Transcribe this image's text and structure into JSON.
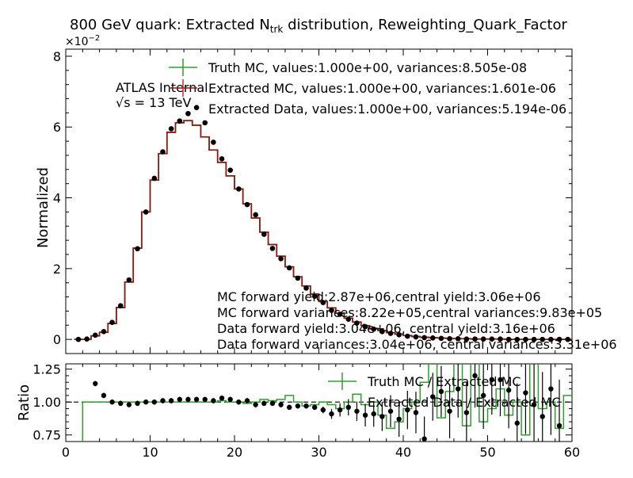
{
  "title": "800 GeV quark: Extracted N",
  "title_sub": "trk",
  "title_rest": " distribution, Reweighting_Quark_Factor",
  "exponent_label": "×10",
  "exponent_power": "−2",
  "atlas_label": "ATLAS Internal",
  "energy_label": "√s = 13 TeV",
  "legend_top": [
    "Truth MC, values:1.000e+00, variances:8.505e-08",
    "Extracted MC, values:1.000e+00, variances:1.601e-06",
    "Extracted Data, values:1.000e+00, variances:5.194e-06"
  ],
  "yield_notes": [
    "MC forward yield:2.87e+06,central yield:3.06e+06",
    "MC forward variances:8.22e+05,central variances:9.83e+05",
    "Data forward yield:3.04e+06, central yield:3.16e+06",
    "Data forward variances:3.04e+06, central variances:3.31e+06"
  ],
  "legend_ratio": [
    "Truth MC / Extracted MC",
    "Extracted Data / Extracted MC"
  ],
  "colors": {
    "truth": "#2ca02c",
    "extracted_mc": "#d62728",
    "data": "#000000"
  },
  "chart_data": [
    {
      "type": "line",
      "panel": "main",
      "ylabel": "Normalized",
      "xlim": [
        0,
        60
      ],
      "ylim": [
        -0.004,
        0.082
      ],
      "yticks": [
        0,
        2,
        4,
        6,
        8
      ],
      "bin_edges": [
        1,
        2,
        3,
        4,
        5,
        6,
        7,
        8,
        9,
        10,
        11,
        12,
        13,
        14,
        15,
        16,
        17,
        18,
        19,
        20,
        21,
        22,
        23,
        24,
        25,
        26,
        27,
        28,
        29,
        30,
        31,
        32,
        33,
        34,
        35,
        36,
        37,
        38,
        39,
        40,
        41,
        42,
        43,
        44,
        45,
        46,
        47,
        48,
        49,
        50,
        51,
        52,
        53,
        54,
        55,
        56,
        57,
        58,
        59,
        60
      ],
      "series": [
        {
          "name": "Truth MC",
          "style": "step",
          "values": [
            0.0,
            0.0,
            0.001,
            0.002,
            0.0045,
            0.009,
            0.0162,
            0.0258,
            0.036,
            0.045,
            0.0525,
            0.0585,
            0.0612,
            0.0618,
            0.0605,
            0.0572,
            0.0535,
            0.05,
            0.0462,
            0.0425,
            0.0383,
            0.0343,
            0.0303,
            0.0268,
            0.0235,
            0.0205,
            0.0177,
            0.0151,
            0.0128,
            0.0107,
            0.0089,
            0.0074,
            0.006,
            0.0049,
            0.0039,
            0.0031,
            0.0025,
            0.0019,
            0.0015,
            0.0011,
            0.0008,
            0.0006,
            0.0005,
            0.0004,
            0.0003,
            0.0002,
            0.0002,
            0.0001,
            0.0001,
            0.0001,
            0.0001,
            0.0,
            0.0,
            0.0,
            0.0,
            0.0,
            0.0,
            0.0,
            0.0
          ]
        },
        {
          "name": "Extracted MC",
          "style": "step",
          "values": [
            0.0,
            0.0,
            0.001,
            0.002,
            0.0045,
            0.009,
            0.0162,
            0.0258,
            0.036,
            0.045,
            0.0525,
            0.0585,
            0.0612,
            0.0618,
            0.0605,
            0.0572,
            0.0535,
            0.05,
            0.0462,
            0.0425,
            0.0383,
            0.0343,
            0.0303,
            0.0268,
            0.0235,
            0.0205,
            0.0177,
            0.0151,
            0.0128,
            0.0107,
            0.0089,
            0.0074,
            0.006,
            0.0049,
            0.0039,
            0.0031,
            0.0025,
            0.0019,
            0.0015,
            0.0011,
            0.0008,
            0.0006,
            0.0005,
            0.0004,
            0.0003,
            0.0002,
            0.0002,
            0.0001,
            0.0001,
            0.0001,
            0.0001,
            0.0,
            0.0,
            0.0,
            0.0,
            0.0,
            0.0,
            0.0,
            0.0
          ]
        },
        {
          "name": "Extracted Data",
          "style": "points",
          "x": [
            1.5,
            2.5,
            3.5,
            4.5,
            5.5,
            6.5,
            7.5,
            8.5,
            9.5,
            10.5,
            11.5,
            12.5,
            13.5,
            14.5,
            15.5,
            16.5,
            17.5,
            18.5,
            19.5,
            20.5,
            21.5,
            22.5,
            23.5,
            24.5,
            25.5,
            26.5,
            27.5,
            28.5,
            29.5,
            30.5,
            31.5,
            32.5,
            33.5,
            34.5,
            35.5,
            36.5,
            37.5,
            38.5,
            39.5,
            40.5,
            41.5,
            42.5,
            43.5,
            44.5,
            45.5,
            46.5,
            47.5,
            48.5,
            49.5,
            50.5,
            51.5,
            52.5,
            53.5,
            54.5,
            55.5,
            56.5,
            57.5,
            58.5,
            59.5
          ],
          "values": [
            0.0,
            0.0001,
            0.0012,
            0.0022,
            0.0048,
            0.0095,
            0.0168,
            0.0256,
            0.036,
            0.0455,
            0.053,
            0.0595,
            0.0617,
            0.0638,
            0.0655,
            0.0612,
            0.0557,
            0.051,
            0.0478,
            0.0425,
            0.0381,
            0.0352,
            0.0297,
            0.0257,
            0.0228,
            0.0202,
            0.0173,
            0.0145,
            0.0122,
            0.0104,
            0.0082,
            0.0071,
            0.0057,
            0.0046,
            0.0036,
            0.0029,
            0.0022,
            0.0017,
            0.0013,
            0.0009,
            0.0007,
            0.0005,
            0.0004,
            0.0003,
            0.0002,
            0.0002,
            0.0001,
            0.0001,
            0.0001,
            0.0001,
            0.0001,
            0.0,
            0.0,
            0.0,
            0.0,
            0.0,
            0.0,
            0.0,
            0.0
          ]
        }
      ]
    },
    {
      "type": "line",
      "panel": "ratio",
      "ylabel": "Ratio",
      "xlabel": "",
      "xlim": [
        0,
        60
      ],
      "ylim": [
        0.7,
        1.29
      ],
      "yticks": [
        0.75,
        1.0,
        1.25
      ],
      "yticklabels": [
        "0.75",
        "1.00",
        "1.25"
      ],
      "xticks": [
        0,
        10,
        20,
        30,
        40,
        50,
        60
      ],
      "reference_line": 1.0,
      "series": [
        {
          "name": "Truth MC / Extracted MC",
          "style": "step",
          "bin_edges": [
            1,
            2,
            3,
            4,
            5,
            6,
            7,
            8,
            9,
            10,
            11,
            12,
            13,
            14,
            15,
            16,
            17,
            18,
            19,
            20,
            21,
            22,
            23,
            24,
            25,
            26,
            27,
            28,
            29,
            30,
            31,
            32,
            33,
            34,
            35,
            36,
            37,
            38,
            39,
            40,
            41,
            42,
            43,
            44,
            45,
            46,
            47,
            48,
            49,
            50,
            51,
            52,
            53,
            54,
            55,
            56,
            57,
            58,
            59,
            60
          ],
          "values": [
            0.5,
            1.0,
            1.0,
            1.0,
            1.0,
            1.0,
            1.0,
            1.0,
            1.0,
            1.0,
            1.0,
            1.0,
            1.0,
            1.0,
            1.0,
            1.0,
            1.0,
            1.01,
            1.0,
            1.0,
            0.99,
            1.0,
            1.02,
            1.01,
            1.02,
            1.05,
            1.0,
            0.97,
            0.98,
            1.0,
            0.98,
            0.95,
            1.0,
            1.06,
            0.98,
            1.0,
            0.9,
            0.8,
            0.85,
            0.95,
            1.0,
            1.15,
            1.3,
            0.88,
            1.08,
            1.3,
            0.82,
            1.3,
            0.85,
            0.95,
            1.1,
            0.9,
            1.0,
            0.75,
            1.3,
            0.95,
            1.0,
            0.8,
            1.05
          ]
        },
        {
          "name": "Extracted Data / Extracted MC",
          "style": "points",
          "x": [
            3.5,
            4.5,
            5.5,
            6.5,
            7.5,
            8.5,
            9.5,
            10.5,
            11.5,
            12.5,
            13.5,
            14.5,
            15.5,
            16.5,
            17.5,
            18.5,
            19.5,
            20.5,
            21.5,
            22.5,
            23.5,
            24.5,
            25.5,
            26.5,
            27.5,
            28.5,
            29.5,
            30.5,
            31.5,
            32.5,
            33.5,
            34.5,
            35.5,
            36.5,
            37.5,
            38.5,
            39.5,
            40.5,
            41.5,
            42.5,
            43.5,
            44.5,
            45.5,
            46.5,
            47.5,
            48.5,
            49.5,
            50.5,
            51.5,
            52.5,
            53.5,
            54.5,
            55.5,
            56.5,
            57.5,
            58.5
          ],
          "values": [
            1.14,
            1.05,
            1.0,
            0.99,
            0.98,
            0.99,
            1.0,
            1.0,
            1.01,
            1.01,
            1.02,
            1.02,
            1.02,
            1.02,
            1.01,
            1.03,
            1.02,
            1.0,
            1.01,
            0.98,
            0.99,
            0.99,
            0.98,
            0.96,
            0.97,
            0.97,
            0.96,
            0.94,
            0.91,
            0.94,
            0.96,
            0.93,
            0.9,
            0.91,
            0.89,
            0.93,
            0.87,
            0.94,
            0.92,
            0.72,
            1.04,
            1.08,
            0.93,
            1.1,
            0.92,
            1.2,
            1.05,
            1.17,
            1.17,
            1.09,
            0.84,
            1.07,
            0.98,
            0.89,
            1.1,
            0.82
          ]
        }
      ]
    }
  ]
}
